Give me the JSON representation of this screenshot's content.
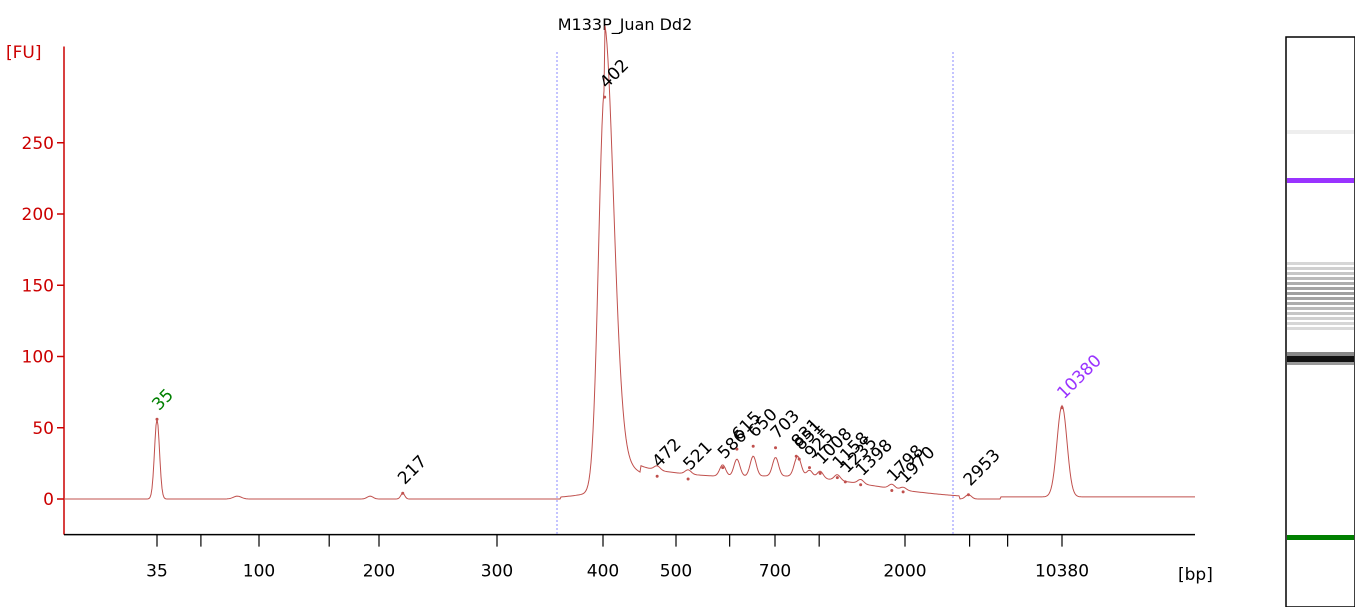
{
  "chart_data": {
    "type": "line",
    "title": "M133P_Juan Dd2",
    "ylabel": "[FU]",
    "xlabel": "[bp]",
    "ylim": [
      -25,
      300
    ],
    "y_ticks": [
      0,
      50,
      100,
      150,
      200,
      250
    ],
    "x_tick_labels": [
      "35",
      "100",
      "200",
      "300",
      "400",
      "500",
      "700",
      "2000",
      "10380"
    ],
    "grid": false,
    "colors": {
      "axis": "#cc0000",
      "trace": "#c0504d",
      "lower_marker": "#008000",
      "upper_marker": "#9933ff",
      "region_line": "#8888ff"
    },
    "series": [
      {
        "x": [
          35,
          100,
          200,
          217,
          300,
          380,
          400,
          420,
          440,
          472,
          500,
          521,
          586,
          615,
          650,
          703,
          760,
          851,
          925,
          1008,
          1300,
          1798,
          1970,
          2953,
          5000,
          10380,
          11000
        ],
        "y": [
          0,
          2,
          0,
          4,
          0,
          3,
          282,
          80,
          30,
          16,
          13,
          13,
          22,
          35,
          37,
          36,
          30,
          28,
          22,
          15,
          10,
          6,
          4,
          3,
          1,
          64,
          3
        ]
      }
    ],
    "peak_labels": [
      {
        "label": "35",
        "x": 35,
        "y": 56,
        "kind": "lower-marker"
      },
      {
        "label": "217",
        "x": 217,
        "y": 4,
        "kind": "peak"
      },
      {
        "label": "402",
        "x": 402,
        "y": 282,
        "kind": "peak"
      },
      {
        "label": "472",
        "x": 472,
        "y": 16,
        "kind": "peak"
      },
      {
        "label": "521",
        "x": 521,
        "y": 14,
        "kind": "peak"
      },
      {
        "label": "586",
        "x": 586,
        "y": 22,
        "kind": "peak"
      },
      {
        "label": "615",
        "x": 615,
        "y": 35,
        "kind": "peak"
      },
      {
        "label": "650",
        "x": 650,
        "y": 37,
        "kind": "peak"
      },
      {
        "label": "703",
        "x": 703,
        "y": 36,
        "kind": "peak"
      },
      {
        "label": "831",
        "x": 831,
        "y": 30,
        "kind": "peak"
      },
      {
        "label": "851",
        "x": 851,
        "y": 28,
        "kind": "peak"
      },
      {
        "label": "925",
        "x": 925,
        "y": 22,
        "kind": "peak"
      },
      {
        "label": "1008",
        "x": 1008,
        "y": 18,
        "kind": "peak"
      },
      {
        "label": "1158",
        "x": 1158,
        "y": 15,
        "kind": "peak"
      },
      {
        "label": "1235",
        "x": 1235,
        "y": 12,
        "kind": "peak"
      },
      {
        "label": "1398",
        "x": 1398,
        "y": 10,
        "kind": "peak"
      },
      {
        "label": "1798",
        "x": 1798,
        "y": 6,
        "kind": "peak"
      },
      {
        "label": "1970",
        "x": 1970,
        "y": 5,
        "kind": "peak"
      },
      {
        "label": "2953",
        "x": 2953,
        "y": 3,
        "kind": "peak"
      },
      {
        "label": "10380",
        "x": 10380,
        "y": 64,
        "kind": "upper-marker"
      }
    ],
    "region_bounds": [
      360,
      2400
    ],
    "gel_lane": {
      "bands": [
        "upper-marker",
        "fragment-smear",
        "main-band",
        "lower-marker"
      ]
    }
  }
}
